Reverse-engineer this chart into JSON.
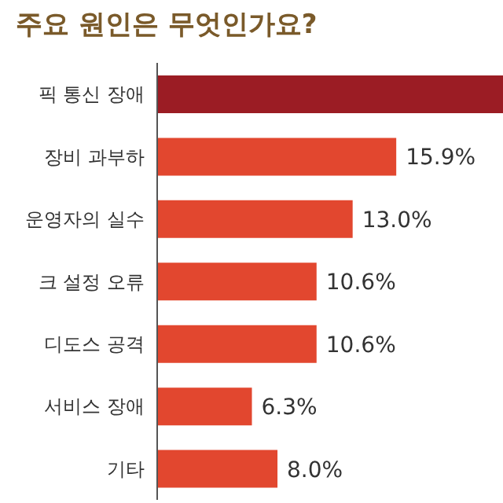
{
  "chart_data": {
    "type": "bar",
    "orientation": "horizontal",
    "tick_labels": "y",
    "title": "주요 원인은 무엇인가요?",
    "categories": [
      "픽 통신 장애",
      "장비 과부하",
      "운영자의 실수",
      "크 설정 오류",
      "디도스 공격",
      "서비스 장애",
      "기타"
    ],
    "values": [
      23,
      15.9,
      13.0,
      10.6,
      10.6,
      6.3,
      8.0
    ],
    "value_labels": [
      null,
      "15.9%",
      "13.0%",
      "10.6%",
      "10.6%",
      "6.3%",
      "8.0%"
    ],
    "colors": [
      "#9b1c24",
      "#e2472f",
      "#e2472f",
      "#e2472f",
      "#e2472f",
      "#e2472f",
      "#e2472f"
    ]
  }
}
